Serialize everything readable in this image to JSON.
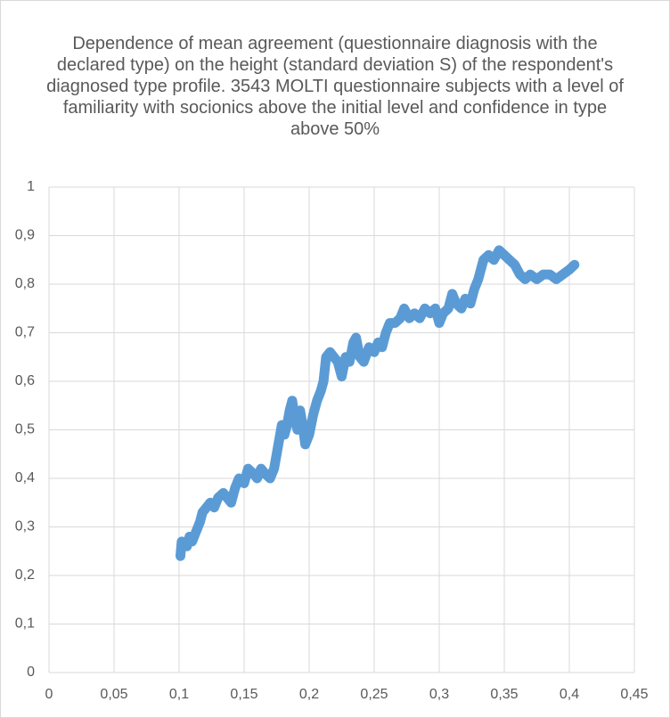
{
  "chart_data": {
    "type": "line",
    "title": "Dependence of mean agreement (questionnaire diagnosis with the declared type) on the height (standard deviation S) of the respondent's diagnosed type profile. 3543 MOLTI questionnaire subjects with a level of familiarity with socionics above the initial level and confidence in type above 50%",
    "color": "#5b9bd5",
    "grid": true,
    "xlim": [
      0,
      0.45
    ],
    "xticks": [
      0,
      {
        "value": 0.05,
        "label": "0,05"
      },
      {
        "value": 0.1,
        "label": "0,1"
      },
      {
        "value": 0.15,
        "label": "0,15"
      },
      {
        "value": 0.2,
        "label": "0,2"
      },
      {
        "value": 0.25,
        "label": "0,25"
      },
      {
        "value": 0.3,
        "label": "0,3"
      },
      {
        "value": 0.35,
        "label": "0,35"
      },
      {
        "value": 0.4,
        "label": "0,4"
      },
      {
        "value": 0.45,
        "label": "0,45"
      }
    ],
    "ylim": [
      0,
      1
    ],
    "yticks": [
      0,
      {
        "value": 0.1,
        "label": "0,1"
      },
      {
        "value": 0.2,
        "label": "0,2"
      },
      {
        "value": 0.3,
        "label": "0,3"
      },
      {
        "value": 0.4,
        "label": "0,4"
      },
      {
        "value": 0.5,
        "label": "0,5"
      },
      {
        "value": 0.6,
        "label": "0,6"
      },
      {
        "value": 0.7,
        "label": "0,7"
      },
      {
        "value": 0.8,
        "label": "0,8"
      },
      {
        "value": 0.9,
        "label": "0,9"
      },
      1
    ],
    "x": [
      0.101,
      0.102,
      0.106,
      0.108,
      0.11,
      0.113,
      0.116,
      0.118,
      0.121,
      0.124,
      0.127,
      0.13,
      0.134,
      0.137,
      0.14,
      0.143,
      0.146,
      0.15,
      0.153,
      0.157,
      0.16,
      0.163,
      0.166,
      0.17,
      0.173,
      0.175,
      0.177,
      0.179,
      0.181,
      0.183,
      0.185,
      0.187,
      0.189,
      0.191,
      0.193,
      0.195,
      0.197,
      0.2,
      0.203,
      0.206,
      0.209,
      0.211,
      0.213,
      0.216,
      0.219,
      0.222,
      0.225,
      0.228,
      0.231,
      0.234,
      0.236,
      0.239,
      0.242,
      0.246,
      0.25,
      0.253,
      0.256,
      0.259,
      0.262,
      0.266,
      0.27,
      0.273,
      0.277,
      0.281,
      0.285,
      0.289,
      0.293,
      0.297,
      0.3,
      0.303,
      0.307,
      0.31,
      0.313,
      0.317,
      0.32,
      0.324,
      0.327,
      0.33,
      0.334,
      0.338,
      0.342,
      0.346,
      0.35,
      0.354,
      0.358,
      0.362,
      0.366,
      0.37,
      0.375,
      0.38,
      0.385,
      0.39,
      0.395,
      0.4,
      0.404
    ],
    "values": [
      0.24,
      0.27,
      0.26,
      0.28,
      0.27,
      0.29,
      0.31,
      0.33,
      0.34,
      0.35,
      0.34,
      0.36,
      0.37,
      0.36,
      0.35,
      0.38,
      0.4,
      0.39,
      0.42,
      0.41,
      0.4,
      0.42,
      0.41,
      0.4,
      0.42,
      0.45,
      0.48,
      0.51,
      0.49,
      0.51,
      0.54,
      0.56,
      0.52,
      0.5,
      0.54,
      0.51,
      0.47,
      0.49,
      0.53,
      0.56,
      0.58,
      0.6,
      0.65,
      0.66,
      0.65,
      0.64,
      0.61,
      0.65,
      0.64,
      0.68,
      0.69,
      0.65,
      0.64,
      0.67,
      0.66,
      0.68,
      0.67,
      0.7,
      0.72,
      0.72,
      0.73,
      0.75,
      0.73,
      0.74,
      0.73,
      0.75,
      0.74,
      0.75,
      0.72,
      0.74,
      0.75,
      0.78,
      0.76,
      0.75,
      0.77,
      0.76,
      0.79,
      0.81,
      0.85,
      0.86,
      0.85,
      0.87,
      0.86,
      0.85,
      0.84,
      0.82,
      0.81,
      0.82,
      0.81,
      0.82,
      0.82,
      0.81,
      0.82,
      0.83,
      0.84
    ]
  }
}
